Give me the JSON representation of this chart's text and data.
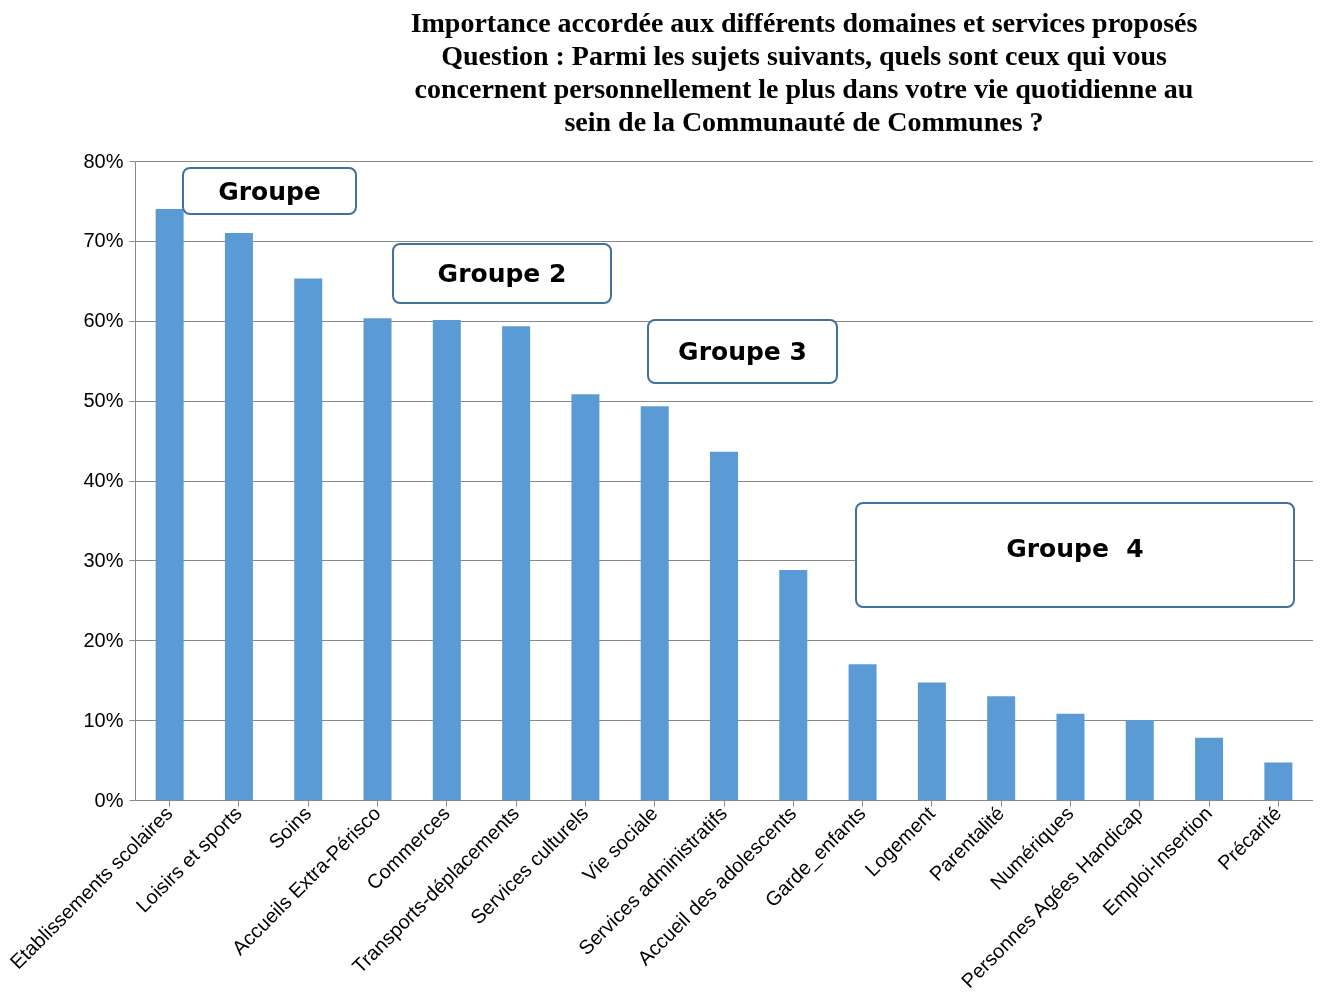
{
  "chart_data": {
    "type": "bar",
    "title": "Importance accordée aux différents domaines et services proposés\nQuestion : Parmi les sujets suivants, quels sont ceux qui vous\nconcernent personnellement le plus dans votre vie quotidienne au\nsein de la Communauté de Communes ?",
    "categories": [
      "Etablissements scolaires",
      "Loisirs et sports",
      "Soins",
      "Accueils Extra-Périsco",
      "Commerces",
      "Transports-déplacements",
      "Services culturels",
      "Vie sociale",
      "Services administratifs",
      "Accueil des adolescents",
      "Garde_enfants",
      "Logement",
      "Parentalité",
      "Numériques",
      "Personnes Agées Handicap",
      "Emploi-Insertion",
      "Précarité"
    ],
    "values": [
      74.0,
      71.0,
      65.3,
      60.3,
      60.1,
      59.3,
      50.8,
      49.3,
      43.6,
      28.8,
      17.0,
      14.7,
      13.0,
      10.8,
      10.0,
      7.8,
      4.7
    ],
    "color": "#5b9bd5",
    "ylim": [
      0,
      80
    ],
    "yticks": [
      {
        "value": 0,
        "label": "0%"
      },
      {
        "value": 10,
        "label": "10%"
      },
      {
        "value": 20,
        "label": "20%"
      },
      {
        "value": 30,
        "label": "30%"
      },
      {
        "value": 40,
        "label": "40%"
      },
      {
        "value": 50,
        "label": "50%"
      },
      {
        "value": 60,
        "label": "60%"
      },
      {
        "value": 70,
        "label": "70%"
      },
      {
        "value": 80,
        "label": "80%"
      }
    ],
    "grid": "y",
    "annotations": [
      "Groupe",
      "Groupe 2",
      "Groupe 3",
      "Groupe  4"
    ]
  }
}
